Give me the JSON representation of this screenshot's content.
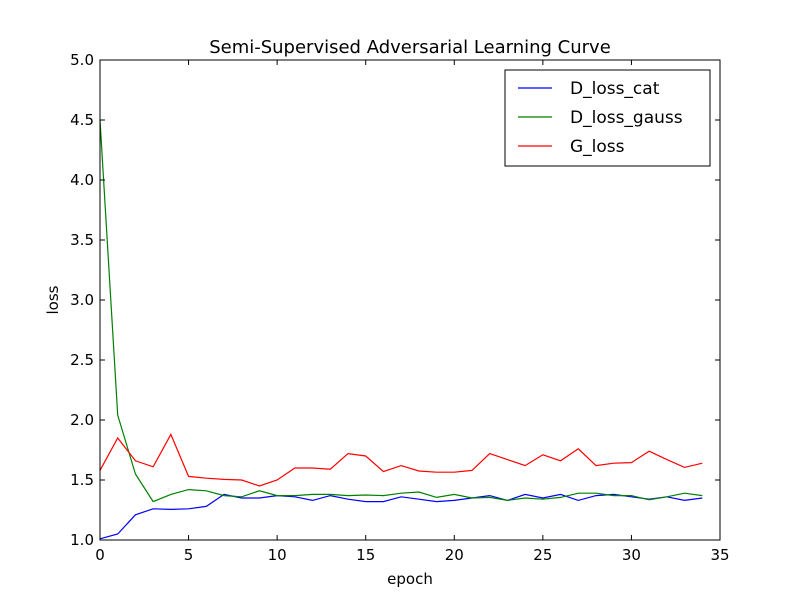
{
  "chart_data": {
    "type": "line",
    "title": "Semi-Supervised Adversarial Learning Curve",
    "xlabel": "epoch",
    "ylabel": "loss",
    "xlim": [
      0,
      35
    ],
    "ylim": [
      1.0,
      5.0
    ],
    "xticks": [
      0,
      5,
      10,
      15,
      20,
      25,
      30,
      35
    ],
    "yticks": [
      1.0,
      1.5,
      2.0,
      2.5,
      3.0,
      3.5,
      4.0,
      4.5,
      5.0
    ],
    "xtick_labels": [
      "0",
      "5",
      "10",
      "15",
      "20",
      "25",
      "30",
      "35"
    ],
    "ytick_labels": [
      "1.0",
      "1.5",
      "2.0",
      "2.5",
      "3.0",
      "3.5",
      "4.0",
      "4.5",
      "5.0"
    ],
    "grid": false,
    "legend_position": "top-right",
    "x": [
      0,
      1,
      2,
      3,
      4,
      5,
      6,
      7,
      8,
      9,
      10,
      11,
      12,
      13,
      14,
      15,
      16,
      17,
      18,
      19,
      20,
      21,
      22,
      23,
      24,
      25,
      26,
      27,
      28,
      29,
      30,
      31,
      32,
      33,
      34
    ],
    "series": [
      {
        "name": "D_loss_cat",
        "color": "#0000ff",
        "values": [
          1.01,
          1.05,
          1.21,
          1.26,
          1.255,
          1.26,
          1.28,
          1.38,
          1.35,
          1.35,
          1.37,
          1.36,
          1.33,
          1.37,
          1.34,
          1.32,
          1.32,
          1.36,
          1.34,
          1.32,
          1.33,
          1.35,
          1.37,
          1.33,
          1.38,
          1.35,
          1.38,
          1.33,
          1.37,
          1.38,
          1.36,
          1.34,
          1.36,
          1.33,
          1.35
        ]
      },
      {
        "name": "D_loss_gauss",
        "color": "#008000",
        "values": [
          4.5,
          2.04,
          1.55,
          1.32,
          1.38,
          1.42,
          1.41,
          1.37,
          1.36,
          1.41,
          1.37,
          1.37,
          1.38,
          1.38,
          1.37,
          1.375,
          1.37,
          1.39,
          1.4,
          1.355,
          1.38,
          1.35,
          1.355,
          1.33,
          1.35,
          1.34,
          1.355,
          1.39,
          1.39,
          1.37,
          1.37,
          1.335,
          1.36,
          1.39,
          1.37
        ]
      },
      {
        "name": "G_loss",
        "color": "#ff0000",
        "values": [
          1.58,
          1.85,
          1.66,
          1.61,
          1.88,
          1.53,
          1.515,
          1.505,
          1.5,
          1.45,
          1.5,
          1.6,
          1.6,
          1.59,
          1.72,
          1.7,
          1.57,
          1.62,
          1.575,
          1.565,
          1.565,
          1.58,
          1.72,
          1.67,
          1.62,
          1.71,
          1.66,
          1.76,
          1.62,
          1.64,
          1.645,
          1.74,
          1.67,
          1.605,
          1.64
        ]
      }
    ]
  }
}
